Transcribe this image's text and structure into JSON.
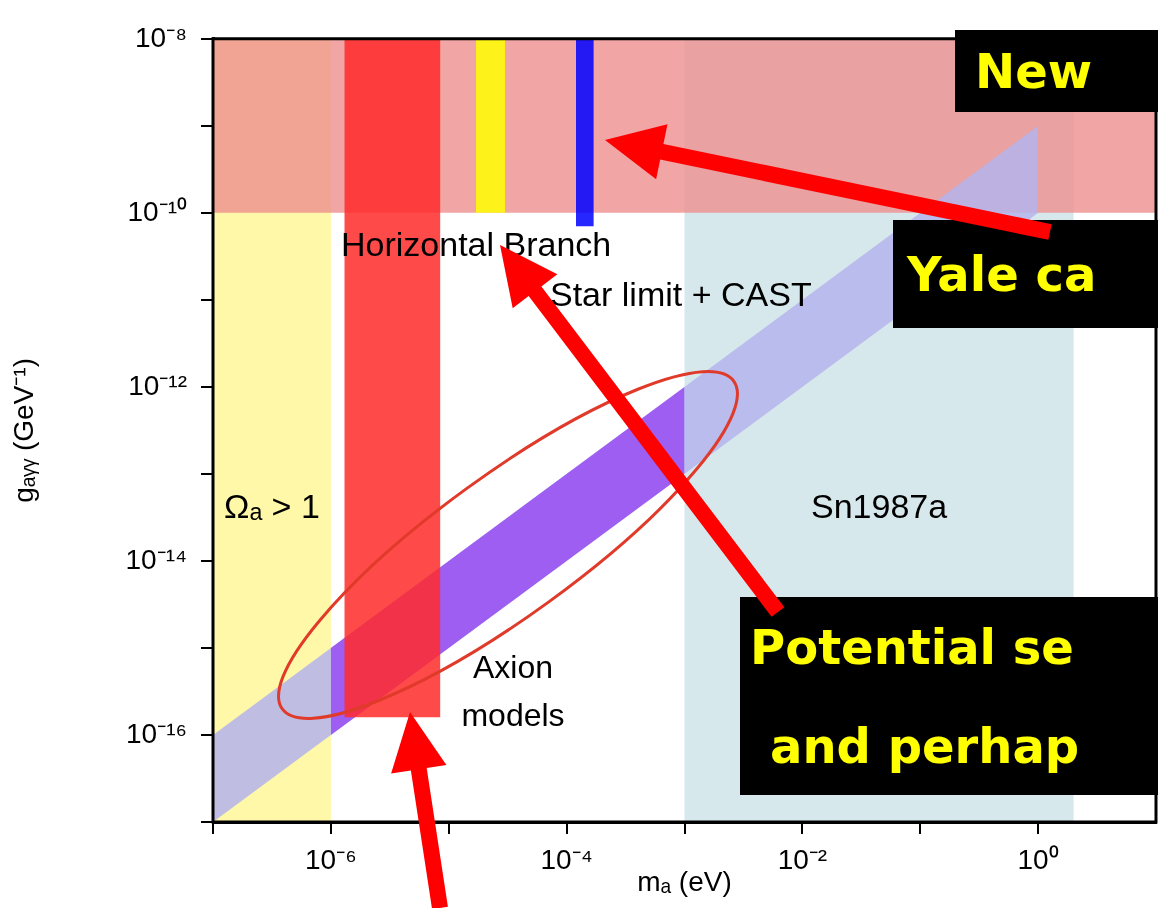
{
  "chart_data": {
    "type": "area",
    "xlabel": "mₐ (eV)",
    "ylabel": "gₐᵧᵧ (GeV⁻¹)",
    "log": "xy",
    "xlim": [
      1e-07,
      10
    ],
    "ylim": [
      1e-17,
      1e-08
    ],
    "xticks": [
      {
        "value": 1e-07,
        "label": null
      },
      {
        "value": 1e-06,
        "label": "10⁻⁶"
      },
      {
        "value": 1e-05,
        "label": null
      },
      {
        "value": 0.0001,
        "label": "10⁻⁴"
      },
      {
        "value": 0.001,
        "label": null
      },
      {
        "value": 0.01,
        "label": "10⁻²"
      },
      {
        "value": 0.1,
        "label": null
      },
      {
        "value": 1,
        "label": "10⁰"
      }
    ],
    "yticks": [
      {
        "value": 1e-17,
        "label": null
      },
      {
        "value": 1e-16,
        "label": "10⁻¹⁶"
      },
      {
        "value": 1e-15,
        "label": null
      },
      {
        "value": 1e-14,
        "label": "10⁻¹⁴"
      },
      {
        "value": 1e-13,
        "label": null
      },
      {
        "value": 1e-12,
        "label": "10⁻¹²"
      },
      {
        "value": 1e-11,
        "label": null
      },
      {
        "value": 1e-10,
        "label": "10⁻¹⁰"
      },
      {
        "value": 1e-09,
        "label": null
      },
      {
        "value": 1e-08,
        "label": "10⁻⁸"
      }
    ],
    "grid": false,
    "bands": [
      {
        "axis": "x",
        "from": 1e-07,
        "to": 1e-06,
        "label": "Ωₐ > 1",
        "color": "#fff8a8"
      },
      {
        "axis": "x",
        "from": 0.001,
        "to": 2,
        "label": "Sn1987a",
        "color": "#d6e8ec"
      },
      {
        "axis": "y",
        "from": 1e-10,
        "to": 1e-08,
        "label": "Horizontal Branch Star limit + CAST",
        "color": "#ee8e8e"
      }
    ],
    "series": [
      {
        "color": "#b4b4ec",
        "x": [
          1e-07,
          1
        ],
        "values": [
          null,
          null
        ],
        "lower": [
          1e-17,
          1e-10
        ],
        "upper": [
          1e-16,
          1e-09
        ]
      },
      {
        "color": "#984cf2",
        "x": [
          1e-06,
          0.001
        ],
        "values": [
          null,
          null
        ],
        "lower": [
          1e-16,
          1e-13
        ],
        "upper": [
          1e-15,
          1e-12
        ]
      },
      {
        "color": "#ff2a2a",
        "x": [
          1.3e-06,
          8.5e-06
        ],
        "values": [
          null,
          null
        ],
        "lower": [
          1.6e-16,
          1.6e-16
        ],
        "upper": [
          1e-08,
          1e-08
        ]
      },
      {
        "color": "#ffff00",
        "x": [
          1.7e-05,
          3e-05
        ],
        "values": [
          null,
          null
        ],
        "lower": [
          1e-10,
          1e-10
        ],
        "upper": [
          1e-08,
          1e-08
        ]
      },
      {
        "color": "#0000ff",
        "x": [
          0.00012,
          0.00017
        ],
        "values": [
          null,
          null
        ],
        "lower": [
          7e-11,
          7e-11
        ],
        "upper": [
          1e-08,
          1e-08
        ]
      }
    ],
    "annotations": [
      "Axion models",
      "New",
      "Yale ca",
      "Potential se",
      "and perhap"
    ]
  }
}
